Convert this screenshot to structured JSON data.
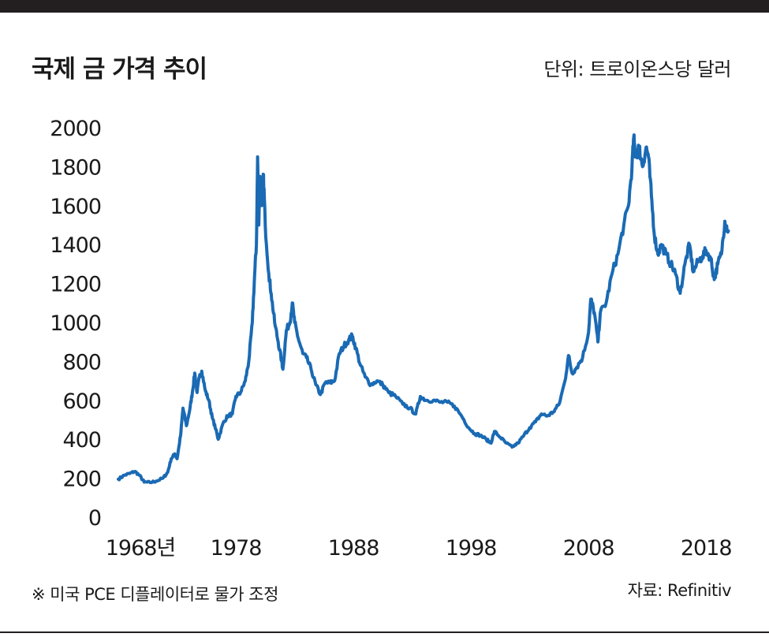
{
  "header": {
    "title": "국제 금 가격 추이",
    "unit": "단위: 트로이온스당 달러"
  },
  "footer": {
    "note": "※ 미국 PCE 디플레이터로 물가 조정",
    "source": "자료: Refinitiv"
  },
  "colors": {
    "line": "#1a6ab4",
    "bars": "#231f20",
    "text": "#1a1a1a"
  },
  "chart_data": {
    "type": "line",
    "title": "국제 금 가격 추이",
    "ylabel": "단위: 트로이온스당 달러",
    "xlabel": "",
    "grid": false,
    "xlim": [
      1968,
      2020
    ],
    "ylim": [
      0,
      2000
    ],
    "x_ticks": [
      {
        "value": 1968,
        "label": "1968년"
      },
      {
        "value": 1978,
        "label": "1978"
      },
      {
        "value": 1988,
        "label": "1988"
      },
      {
        "value": 1998,
        "label": "1998"
      },
      {
        "value": 2008,
        "label": "2008"
      },
      {
        "value": 2018,
        "label": "2018"
      }
    ],
    "y_ticks": [
      {
        "value": 0,
        "label": "0"
      },
      {
        "value": 200,
        "label": "200"
      },
      {
        "value": 400,
        "label": "400"
      },
      {
        "value": 600,
        "label": "600"
      },
      {
        "value": 800,
        "label": "800"
      },
      {
        "value": 1000,
        "label": "1000"
      },
      {
        "value": 1200,
        "label": "1200"
      },
      {
        "value": 1400,
        "label": "1400"
      },
      {
        "value": 1600,
        "label": "1600"
      },
      {
        "value": 1800,
        "label": "1800"
      },
      {
        "value": 2000,
        "label": "2000"
      }
    ],
    "series": [
      {
        "points": [
          [
            1968.0,
            195
          ],
          [
            1968.5,
            215
          ],
          [
            1969.0,
            225
          ],
          [
            1969.4,
            235
          ],
          [
            1969.8,
            215
          ],
          [
            1970.2,
            180
          ],
          [
            1970.7,
            178
          ],
          [
            1971.2,
            185
          ],
          [
            1971.8,
            200
          ],
          [
            1972.2,
            230
          ],
          [
            1972.5,
            300
          ],
          [
            1972.8,
            325
          ],
          [
            1973.0,
            300
          ],
          [
            1973.3,
            420
          ],
          [
            1973.5,
            560
          ],
          [
            1973.8,
            470
          ],
          [
            1974.1,
            560
          ],
          [
            1974.3,
            640
          ],
          [
            1974.5,
            740
          ],
          [
            1974.7,
            640
          ],
          [
            1974.9,
            720
          ],
          [
            1975.1,
            750
          ],
          [
            1975.4,
            650
          ],
          [
            1975.7,
            600
          ],
          [
            1976.0,
            510
          ],
          [
            1976.3,
            450
          ],
          [
            1976.5,
            400
          ],
          [
            1976.9,
            480
          ],
          [
            1977.3,
            520
          ],
          [
            1977.7,
            530
          ],
          [
            1978.0,
            620
          ],
          [
            1978.4,
            640
          ],
          [
            1978.8,
            700
          ],
          [
            1979.1,
            800
          ],
          [
            1979.4,
            1000
          ],
          [
            1979.6,
            1250
          ],
          [
            1979.75,
            1400
          ],
          [
            1979.85,
            1850
          ],
          [
            1979.95,
            1500
          ],
          [
            1980.05,
            1750
          ],
          [
            1980.2,
            1600
          ],
          [
            1980.35,
            1760
          ],
          [
            1980.5,
            1500
          ],
          [
            1980.8,
            1250
          ],
          [
            1981.0,
            1150
          ],
          [
            1981.3,
            1000
          ],
          [
            1981.6,
            900
          ],
          [
            1981.9,
            800
          ],
          [
            1982.0,
            760
          ],
          [
            1982.3,
            960
          ],
          [
            1982.6,
            1000
          ],
          [
            1982.8,
            1100
          ],
          [
            1983.0,
            1000
          ],
          [
            1983.3,
            920
          ],
          [
            1983.7,
            840
          ],
          [
            1984.0,
            820
          ],
          [
            1984.4,
            760
          ],
          [
            1984.8,
            680
          ],
          [
            1985.2,
            630
          ],
          [
            1985.6,
            690
          ],
          [
            1986.0,
            690
          ],
          [
            1986.4,
            700
          ],
          [
            1986.8,
            840
          ],
          [
            1987.2,
            880
          ],
          [
            1987.6,
            910
          ],
          [
            1987.9,
            930
          ],
          [
            1988.2,
            870
          ],
          [
            1988.6,
            780
          ],
          [
            1989.0,
            720
          ],
          [
            1989.5,
            680
          ],
          [
            1990.0,
            700
          ],
          [
            1990.5,
            680
          ],
          [
            1991.0,
            640
          ],
          [
            1991.6,
            620
          ],
          [
            1992.2,
            580
          ],
          [
            1992.8,
            560
          ],
          [
            1993.3,
            530
          ],
          [
            1993.7,
            620
          ],
          [
            1994.2,
            600
          ],
          [
            1994.8,
            600
          ],
          [
            1995.4,
            590
          ],
          [
            1996.0,
            590
          ],
          [
            1996.6,
            570
          ],
          [
            1997.2,
            520
          ],
          [
            1997.8,
            460
          ],
          [
            1998.3,
            430
          ],
          [
            1998.8,
            420
          ],
          [
            1999.3,
            400
          ],
          [
            1999.7,
            380
          ],
          [
            2000.0,
            440
          ],
          [
            2000.5,
            410
          ],
          [
            2001.0,
            380
          ],
          [
            2001.5,
            360
          ],
          [
            2002.0,
            380
          ],
          [
            2002.5,
            420
          ],
          [
            2003.0,
            460
          ],
          [
            2003.5,
            490
          ],
          [
            2004.0,
            530
          ],
          [
            2004.5,
            520
          ],
          [
            2005.0,
            540
          ],
          [
            2005.5,
            580
          ],
          [
            2006.0,
            700
          ],
          [
            2006.3,
            830
          ],
          [
            2006.6,
            740
          ],
          [
            2007.0,
            770
          ],
          [
            2007.5,
            820
          ],
          [
            2008.0,
            950
          ],
          [
            2008.2,
            1120
          ],
          [
            2008.5,
            1050
          ],
          [
            2008.8,
            900
          ],
          [
            2009.0,
            1050
          ],
          [
            2009.5,
            1100
          ],
          [
            2010.0,
            1250
          ],
          [
            2010.5,
            1350
          ],
          [
            2011.0,
            1500
          ],
          [
            2011.4,
            1600
          ],
          [
            2011.7,
            1800
          ],
          [
            2011.85,
            1950
          ],
          [
            2012.0,
            1850
          ],
          [
            2012.3,
            1900
          ],
          [
            2012.6,
            1800
          ],
          [
            2012.9,
            1900
          ],
          [
            2013.1,
            1850
          ],
          [
            2013.35,
            1650
          ],
          [
            2013.6,
            1450
          ],
          [
            2013.9,
            1350
          ],
          [
            2014.2,
            1400
          ],
          [
            2014.6,
            1350
          ],
          [
            2015.0,
            1300
          ],
          [
            2015.4,
            1250
          ],
          [
            2015.8,
            1150
          ],
          [
            2016.2,
            1300
          ],
          [
            2016.6,
            1400
          ],
          [
            2016.9,
            1260
          ],
          [
            2017.3,
            1310
          ],
          [
            2017.7,
            1340
          ],
          [
            2018.0,
            1370
          ],
          [
            2018.4,
            1330
          ],
          [
            2018.7,
            1220
          ],
          [
            2019.0,
            1300
          ],
          [
            2019.3,
            1350
          ],
          [
            2019.6,
            1520
          ],
          [
            2019.9,
            1470
          ]
        ]
      }
    ]
  }
}
